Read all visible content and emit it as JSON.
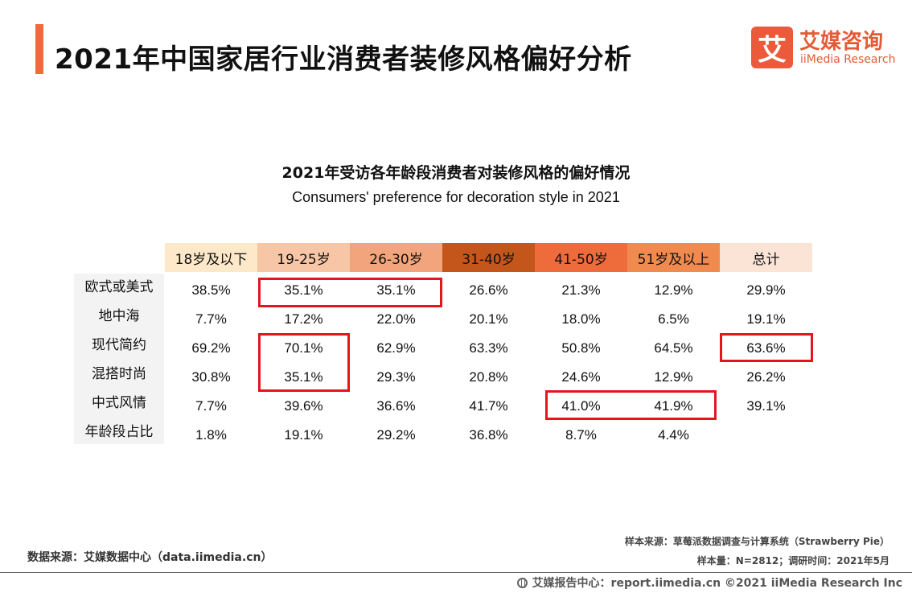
{
  "header": {
    "title": "2021年中国家居行业消费者装修风格偏好分析",
    "logo_mark": "艾",
    "logo_cn": "艾媒咨询",
    "logo_en": "iiMedia Research"
  },
  "colors": {
    "accent": "#ee6b3b",
    "highlight_box": "#e3161e",
    "header_fills": [
      "#fde8c9",
      "#f6c6a6",
      "#f2a57c",
      "#c4561b",
      "#ee6b3b",
      "#f08a4e",
      "#fbe3d6"
    ]
  },
  "chart_data": {
    "type": "table",
    "title": "2021年受访各年龄段消费者对装修风格的偏好情况",
    "subtitle": "Consumers' preference for decoration style in 2021",
    "columns": [
      "18岁及以下",
      "19-25岁",
      "26-30岁",
      "31-40岁",
      "41-50岁",
      "51岁及以上",
      "总计"
    ],
    "rows": [
      {
        "label": "欧式或美式",
        "values": [
          "38.5%",
          "35.1%",
          "35.1%",
          "26.6%",
          "21.3%",
          "12.9%",
          "29.9%"
        ]
      },
      {
        "label": "地中海",
        "values": [
          "7.7%",
          "17.2%",
          "22.0%",
          "20.1%",
          "18.0%",
          "6.5%",
          "19.1%"
        ]
      },
      {
        "label": "现代简约",
        "values": [
          "69.2%",
          "70.1%",
          "62.9%",
          "63.3%",
          "50.8%",
          "64.5%",
          "63.6%"
        ]
      },
      {
        "label": "混搭时尚",
        "values": [
          "30.8%",
          "35.1%",
          "29.3%",
          "20.8%",
          "24.6%",
          "12.9%",
          "26.2%"
        ]
      },
      {
        "label": "中式风情",
        "values": [
          "7.7%",
          "39.6%",
          "36.6%",
          "41.7%",
          "41.0%",
          "41.9%",
          "39.1%"
        ]
      },
      {
        "label": "年龄段占比",
        "values": [
          "1.8%",
          "19.1%",
          "29.2%",
          "36.8%",
          "8.7%",
          "4.4%",
          ""
        ]
      }
    ]
  },
  "footer": {
    "source": "数据来源：艾媒数据中心（data.iimedia.cn）",
    "sample_source": "样本来源：草莓派数据调查与计算系统（Strawberry Pie）",
    "sample_size": "样本量：N=2812；调研时间：2021年5月",
    "report_center": "艾媒报告中心：report.iimedia.cn ©2021 iiMedia Research Inc"
  }
}
